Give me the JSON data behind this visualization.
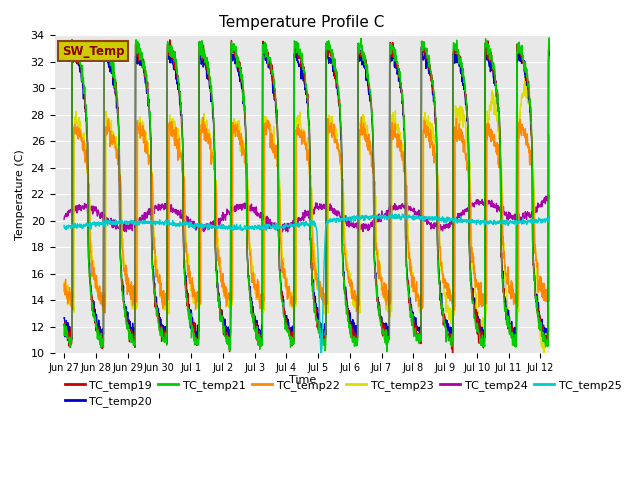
{
  "title": "Temperature Profile C",
  "xlabel": "Time",
  "ylabel": "Temperature (C)",
  "ylim": [
    10,
    34
  ],
  "yticks": [
    10,
    12,
    14,
    16,
    18,
    20,
    22,
    24,
    26,
    28,
    30,
    32,
    34
  ],
  "fig_bg": "#ffffff",
  "plot_bg": "#e8e8e8",
  "series_colors": {
    "TC_temp19": "#cc0000",
    "TC_temp20": "#0000cc",
    "TC_temp21": "#00cc00",
    "TC_temp22": "#ff8800",
    "TC_temp23": "#dddd00",
    "TC_temp24": "#aa00aa",
    "TC_temp25": "#00cccc"
  },
  "x_tick_labels": [
    "Jun 27",
    "Jun 28",
    "Jun 29",
    "Jun 30",
    "Jul 1",
    "Jul 2",
    "Jul 3",
    "Jul 4",
    "Jul 5",
    "Jul 6",
    "Jul 7",
    "Jul 8",
    "Jul 9",
    "Jul 10",
    "Jul 11",
    "Jul 12"
  ],
  "x_tick_positions": [
    0,
    1,
    2,
    3,
    4,
    5,
    6,
    7,
    8,
    9,
    10,
    11,
    12,
    13,
    14,
    15
  ],
  "n_days": 16,
  "n_points": 1600
}
